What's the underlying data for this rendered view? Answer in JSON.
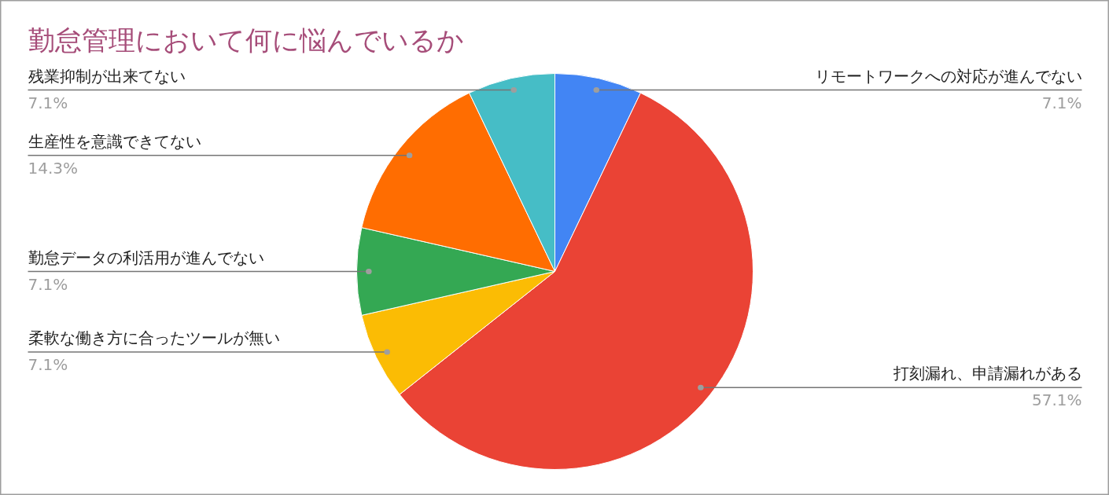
{
  "chart_data": {
    "type": "pie",
    "title": "勤怠管理において何に悩んでいるか",
    "categories": [
      "リモートワークへの対応が進んでない",
      "打刻漏れ、申請漏れがある",
      "柔軟な働き方に合ったツールが無い",
      "勤怠データの利活用が進んでない",
      "生産性を意識できてない",
      "残業抑制が出来てない"
    ],
    "values": [
      7.1,
      57.1,
      7.1,
      7.1,
      14.3,
      7.1
    ],
    "colors": [
      "#4285f4",
      "#ea4335",
      "#fbbc04",
      "#34a853",
      "#ff6d01",
      "#46bdc6"
    ],
    "value_labels": [
      "7.1%",
      "57.1%",
      "7.1%",
      "7.1%",
      "14.3%",
      "7.1%"
    ]
  }
}
